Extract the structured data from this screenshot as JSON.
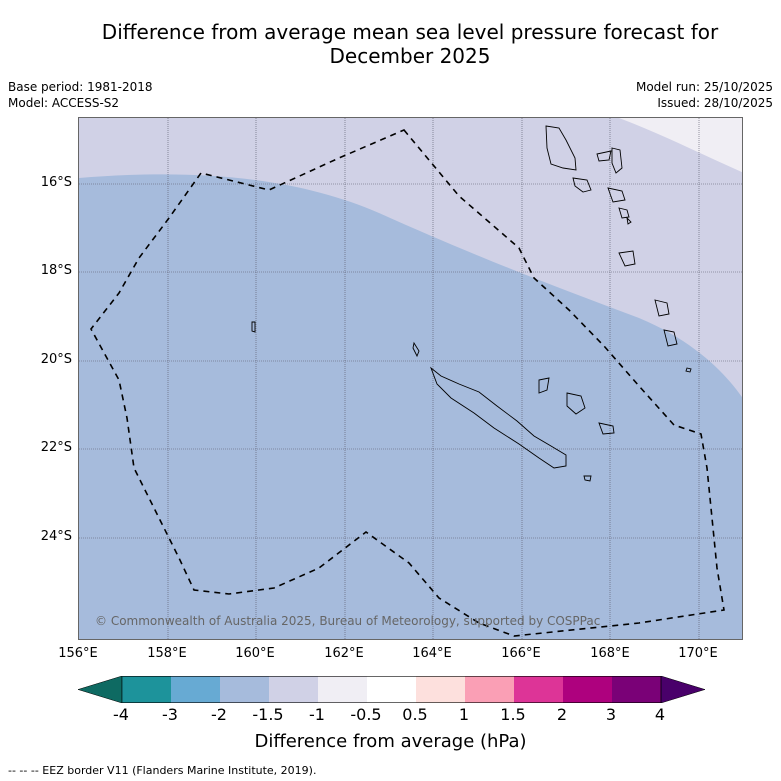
{
  "title_line1": "Difference from average mean sea level pressure forecast for",
  "title_line2": "December 2025",
  "meta": {
    "base_period": "Base period: 1981-2018",
    "model": "Model: ACCESS-S2",
    "model_run": "Model run: 25/10/2025",
    "issued": "Issued: 28/10/2025"
  },
  "map": {
    "copyright": "© Commonwealth of Australia 2025, Bureau of Meteorology, supported by COSPPac",
    "lat_labels": [
      "16°S",
      "18°S",
      "20°S",
      "22°S",
      "24°S"
    ],
    "lon_labels": [
      "156°E",
      "158°E",
      "160°E",
      "162°E",
      "164°E",
      "166°E",
      "168°E",
      "170°E"
    ]
  },
  "colorbar": {
    "ticks": [
      "-4",
      "-3",
      "-2",
      "-1.5",
      "-1",
      "-0.5",
      "0.5",
      "1",
      "1.5",
      "2",
      "3",
      "4"
    ],
    "colors": [
      "#0e6a62",
      "#1d939b",
      "#67aad3",
      "#a6bbdc",
      "#d0d1e6",
      "#f0eef4",
      "#ffffff",
      "#fde0dd",
      "#fa9fb5",
      "#dd3497",
      "#ae017e",
      "#7a0177",
      "#49006a"
    ],
    "label": "Difference from average (hPa)"
  },
  "footer": "--  --  -- EEZ border V11 (Flanders Marine Institute, 2019)."
}
